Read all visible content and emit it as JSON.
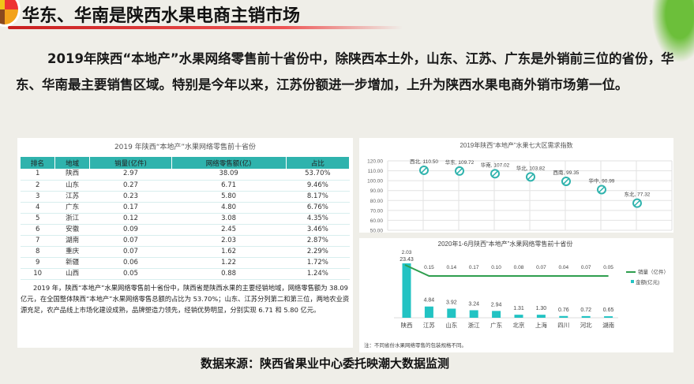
{
  "header": {
    "title": "华东、华南是陕西水果电商主销市场"
  },
  "intro": "2019年陕西“本地产”水果网络零售前十省份中，除陕西本土外，山东、江苏、广东是外销前三位的省份，华东、华南最主要销售区域。特别是今年以来，江苏份额进一步增加，上升为陕西水果电商外销市场第一位。",
  "table": {
    "caption": "2019 年陕西“本地产”水果网络零售前十省份",
    "columns": [
      "排名",
      "地域",
      "销量(亿件)",
      "网络零售额(亿)",
      "占比"
    ],
    "rows": [
      [
        "1",
        "陕西",
        "2.97",
        "38.09",
        "53.70%"
      ],
      [
        "2",
        "山东",
        "0.27",
        "6.71",
        "9.46%"
      ],
      [
        "3",
        "江苏",
        "0.23",
        "5.80",
        "8.17%"
      ],
      [
        "4",
        "广东",
        "0.17",
        "4.80",
        "6.76%"
      ],
      [
        "5",
        "浙江",
        "0.12",
        "3.08",
        "4.35%"
      ],
      [
        "6",
        "安徽",
        "0.09",
        "2.45",
        "3.46%"
      ],
      [
        "7",
        "湖南",
        "0.07",
        "2.03",
        "2.87%"
      ],
      [
        "8",
        "重庆",
        "0.07",
        "1.62",
        "2.29%"
      ],
      [
        "9",
        "新疆",
        "0.06",
        "1.22",
        "1.72%"
      ],
      [
        "10",
        "山西",
        "0.05",
        "0.88",
        "1.24%"
      ]
    ],
    "note": "2019 年，陕西“本地产”水果网络零售前十省份中，陕西省是陕西水果的主要经销地域，网络零售额为 38.09 亿元，在全国整体陕西“本地产”水果网络零售总额的占比为 53.70%；山东、江苏分列第二和第三位，两地农业资源充足，农产品线上市场化建设成熟，品牌塑造力领先，经销优势明显，分别实现 6.71 和 5.80 亿元。"
  },
  "chart_data": [
    {
      "type": "scatter",
      "title": "2019年陕西“本地产”水果七大区需求指数",
      "categories": [
        "西北",
        "华东",
        "华南",
        "华北",
        "西南",
        "华中",
        "东北"
      ],
      "values": [
        110.5,
        109.72,
        107.02,
        103.82,
        99.35,
        90.99,
        77.32
      ],
      "ylim": [
        50,
        120
      ],
      "yticks": [
        "50.00",
        "60.00",
        "70.00",
        "80.00",
        "90.00",
        "100.00",
        "110.00",
        "120.00"
      ],
      "grid": true,
      "color": "#2fb3ad"
    },
    {
      "type": "bar",
      "title": "2020年1-6月陕西“本地产”水果网络零售前十省份",
      "categories": [
        "陕西",
        "江苏",
        "山东",
        "浙江",
        "广东",
        "北京",
        "上海",
        "四川",
        "河北",
        "湖南"
      ],
      "series": [
        {
          "name": "销量（亿件）",
          "type": "line",
          "color": "#2e9e4e",
          "values": [
            2.03,
            0.15,
            0.14,
            0.17,
            0.1,
            0.08,
            0.07,
            0.04,
            0.07,
            0.05
          ]
        },
        {
          "name": "金额(亿元)",
          "type": "bar",
          "color": "#22c3c3",
          "values": [
            23.43,
            4.84,
            3.92,
            3.24,
            2.94,
            1.31,
            1.3,
            0.76,
            0.72,
            0.65
          ]
        }
      ],
      "legend": "right",
      "note": "注：不同省份水果网络零售的包装规格不同。"
    }
  ],
  "source": "数据来源：陕西省果业中心委托映潮大数据监测"
}
